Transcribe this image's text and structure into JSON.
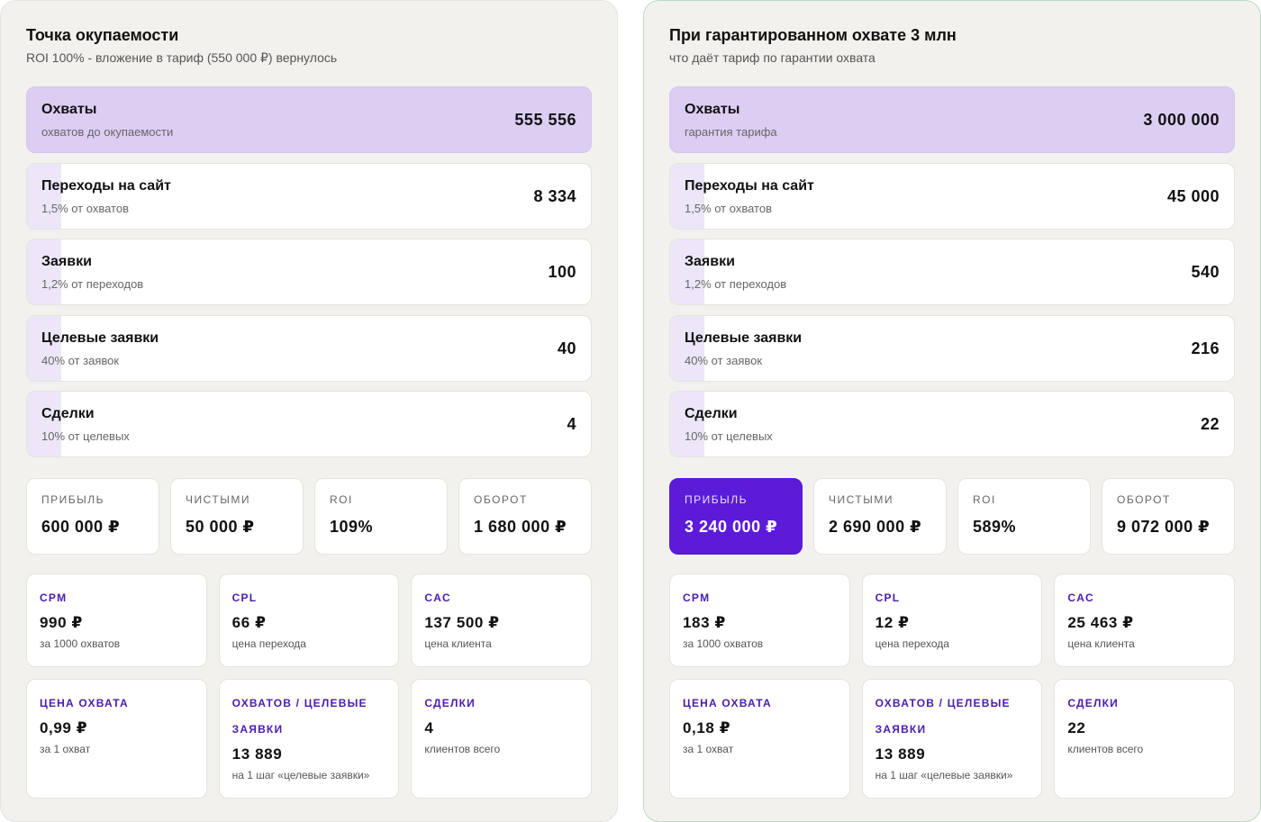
{
  "left": {
    "title": "Точка окупаемости",
    "subtitle": "ROI 100% - вложение в тариф (550 000 ₽) вернулось",
    "funnel": [
      {
        "label": "Охваты",
        "sub": "охватов до окупаемости",
        "value": "555 556"
      },
      {
        "label": "Переходы на сайт",
        "sub": "1,5% от охватов",
        "value": "8 334"
      },
      {
        "label": "Заявки",
        "sub": "1,2% от переходов",
        "value": "100"
      },
      {
        "label": "Целевые заявки",
        "sub": "40% от заявок",
        "value": "40"
      },
      {
        "label": "Сделки",
        "sub": "10% от целевых",
        "value": "4"
      }
    ],
    "stats": [
      {
        "label": "ПРИБЫЛЬ",
        "value": "600 000 ₽"
      },
      {
        "label": "ЧИСТЫМИ",
        "value": "50 000 ₽"
      },
      {
        "label": "ROI",
        "value": "109%"
      },
      {
        "label": "ОБОРОТ",
        "value": "1 680 000 ₽"
      }
    ],
    "metrics": [
      {
        "label": "CPM",
        "value": "990 ₽",
        "sub": "за 1000 охватов"
      },
      {
        "label": "CPL",
        "value": "66 ₽",
        "sub": "цена перехода"
      },
      {
        "label": "CAC",
        "value": "137 500 ₽",
        "sub": "цена клиента"
      },
      {
        "label": "ЦЕНА ОХВАТА",
        "value": "0,99 ₽",
        "sub": "за 1 охват"
      },
      {
        "label": "ОХВАТОВ / ЦЕЛЕВЫЕ ЗАЯВКИ",
        "value": "13 889",
        "sub": "на 1 шаг «целевые заявки»"
      },
      {
        "label": "СДЕЛКИ",
        "value": "4",
        "sub": "клиентов всего"
      }
    ]
  },
  "right": {
    "title": "При гарантированном охвате 3 млн",
    "subtitle": "что даёт тариф по гарантии охвата",
    "funnel": [
      {
        "label": "Охваты",
        "sub": "гарантия тарифа",
        "value": "3 000 000"
      },
      {
        "label": "Переходы на сайт",
        "sub": "1,5% от охватов",
        "value": "45 000"
      },
      {
        "label": "Заявки",
        "sub": "1,2% от переходов",
        "value": "540"
      },
      {
        "label": "Целевые заявки",
        "sub": "40% от заявок",
        "value": "216"
      },
      {
        "label": "Сделки",
        "sub": "10% от целевых",
        "value": "22"
      }
    ],
    "stats": [
      {
        "label": "ПРИБЫЛЬ",
        "value": "3 240 000 ₽"
      },
      {
        "label": "ЧИСТЫМИ",
        "value": "2 690 000 ₽"
      },
      {
        "label": "ROI",
        "value": "589%"
      },
      {
        "label": "ОБОРОТ",
        "value": "9 072 000 ₽"
      }
    ],
    "metrics": [
      {
        "label": "CPM",
        "value": "183 ₽",
        "sub": "за 1000 охватов"
      },
      {
        "label": "CPL",
        "value": "12 ₽",
        "sub": "цена перехода"
      },
      {
        "label": "CAC",
        "value": "25 463 ₽",
        "sub": "цена клиента"
      },
      {
        "label": "ЦЕНА ОХВАТА",
        "value": "0,18 ₽",
        "sub": "за 1 охват"
      },
      {
        "label": "ОХВАТОВ / ЦЕЛЕВЫЕ ЗАЯВКИ",
        "value": "13 889",
        "sub": "на 1 шаг «целевые заявки»"
      },
      {
        "label": "СДЕЛКИ",
        "value": "22",
        "sub": "клиентов всего"
      }
    ]
  },
  "colors": {
    "accent": "#5b1bd9",
    "reach_highlight": "#dccdf3",
    "metric_label": "#4a1bb0",
    "panel_bg": "#f2f1ee"
  }
}
